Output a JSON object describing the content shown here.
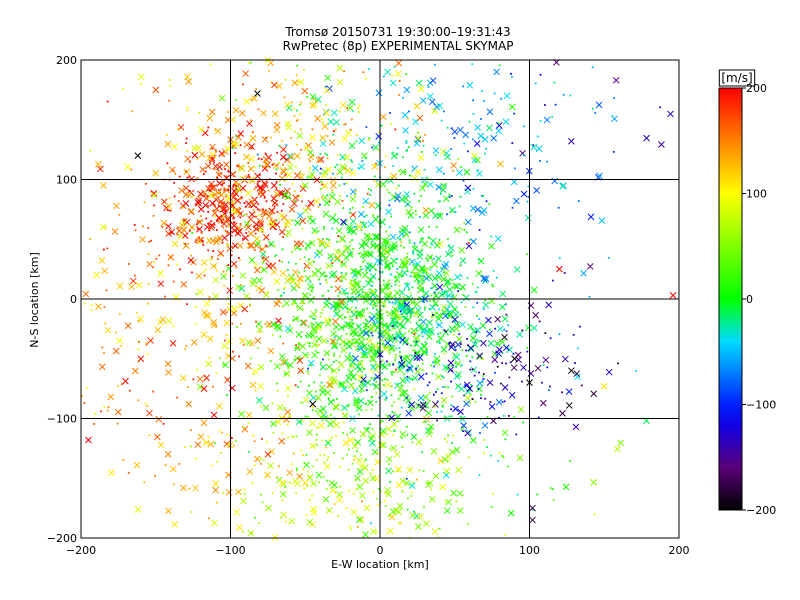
{
  "chart_data": {
    "type": "scatter",
    "title": "Tromsø 20150731 19:30:00–19:31:43",
    "subtitle": "RwPretec (8p) EXPERIMENTAL SKYMAP",
    "xlabel": "E-W location [km]",
    "ylabel": "N-S location [km]",
    "xlim": [
      -200,
      200
    ],
    "ylim": [
      -200,
      200
    ],
    "xticks": [
      -200,
      -100,
      0,
      100,
      200
    ],
    "yticks": [
      -200,
      -100,
      0,
      100,
      200
    ],
    "xtick_labels": [
      "−200",
      "−100",
      "0",
      "100",
      "200"
    ],
    "ytick_labels": [
      "−200",
      "−100",
      "0",
      "100",
      "200"
    ],
    "grid": true,
    "marker_styles": [
      "x",
      "dot"
    ],
    "colorbar": {
      "label": "[m/s]",
      "min": -200,
      "max": 200,
      "ticks": [
        200,
        100,
        0,
        -100,
        -200
      ],
      "tick_labels": [
        "200",
        "100",
        "0",
        "−100",
        "−200"
      ],
      "colormap": "rainbow (black-purple-blue-cyan-green-yellow-red)"
    },
    "clusters": [
      {
        "center": [
          -100,
          80
        ],
        "spread": [
          25,
          25
        ],
        "velocity": 185
      },
      {
        "center": [
          0,
          -10
        ],
        "spread": [
          40,
          55
        ],
        "velocity": 10
      },
      {
        "center": [
          40,
          130
        ],
        "spread": [
          60,
          50
        ],
        "velocity": -40
      },
      {
        "center": [
          -120,
          -10
        ],
        "spread": [
          50,
          70
        ],
        "velocity": 140
      },
      {
        "center": [
          60,
          -60
        ],
        "spread": [
          40,
          30
        ],
        "velocity": -110
      },
      {
        "center": [
          -60,
          130
        ],
        "spread": [
          50,
          40
        ],
        "velocity": 120
      },
      {
        "center": [
          -20,
          -150
        ],
        "spread": [
          60,
          40
        ],
        "velocity": 70
      }
    ],
    "points": [
      {
        "x": -185,
        "y": 95,
        "v": 130,
        "m": "x"
      },
      {
        "x": -162,
        "y": 120,
        "v": -200,
        "m": "x"
      },
      {
        "x": -150,
        "y": 175,
        "v": 170,
        "m": "x"
      },
      {
        "x": -128,
        "y": 182,
        "v": 140,
        "m": "x"
      },
      {
        "x": -120,
        "y": 88,
        "v": 195,
        "m": "x"
      },
      {
        "x": -112,
        "y": 80,
        "v": 200,
        "m": "x"
      },
      {
        "x": -105,
        "y": 75,
        "v": 190,
        "m": "x"
      },
      {
        "x": -98,
        "y": 85,
        "v": 185,
        "m": "x"
      },
      {
        "x": -95,
        "y": 55,
        "v": 195,
        "m": "x"
      },
      {
        "x": -88,
        "y": 60,
        "v": 175,
        "m": "x"
      },
      {
        "x": -82,
        "y": 172,
        "v": -200,
        "m": "x"
      },
      {
        "x": -80,
        "y": 65,
        "v": 160,
        "m": "x"
      },
      {
        "x": -75,
        "y": 200,
        "v": 90,
        "m": "x"
      },
      {
        "x": -70,
        "y": 155,
        "v": 130,
        "m": "x"
      },
      {
        "x": -60,
        "y": 110,
        "v": 60,
        "m": "x"
      },
      {
        "x": -50,
        "y": 95,
        "v": 40,
        "m": "x"
      },
      {
        "x": -45,
        "y": 65,
        "v": 0,
        "m": "x"
      },
      {
        "x": -45,
        "y": -88,
        "v": -200,
        "m": "x"
      },
      {
        "x": -35,
        "y": 185,
        "v": 20,
        "m": "x"
      },
      {
        "x": -20,
        "y": 160,
        "v": 30,
        "m": "x"
      },
      {
        "x": 5,
        "y": 190,
        "v": -30,
        "m": "x"
      },
      {
        "x": 18,
        "y": 175,
        "v": -60,
        "m": "x"
      },
      {
        "x": 35,
        "y": 165,
        "v": -80,
        "m": "x"
      },
      {
        "x": 50,
        "y": 140,
        "v": -90,
        "m": "x"
      },
      {
        "x": 65,
        "y": 130,
        "v": -110,
        "m": "x"
      },
      {
        "x": 78,
        "y": 190,
        "v": -70,
        "m": "x"
      },
      {
        "x": 85,
        "y": 170,
        "v": -40,
        "m": "x"
      },
      {
        "x": 118,
        "y": 198,
        "v": -160,
        "m": "x"
      },
      {
        "x": 128,
        "y": 132,
        "v": -140,
        "m": "x"
      },
      {
        "x": 158,
        "y": 183,
        "v": -150,
        "m": "x"
      },
      {
        "x": 120,
        "y": 25,
        "v": 200,
        "m": "x"
      },
      {
        "x": 100,
        "y": -70,
        "v": -200,
        "m": "x"
      },
      {
        "x": 128,
        "y": -60,
        "v": -200,
        "m": "x"
      },
      {
        "x": 150,
        "y": -73,
        "v": 110,
        "m": "x"
      },
      {
        "x": 102,
        "y": -175,
        "v": -180,
        "m": "x"
      },
      {
        "x": 102,
        "y": -185,
        "v": -180,
        "m": "x"
      },
      {
        "x": -195,
        "y": -118,
        "v": 200,
        "m": "x"
      },
      {
        "x": -160,
        "y": -50,
        "v": 190,
        "m": "x"
      },
      {
        "x": -128,
        "y": -88,
        "v": 150,
        "m": "x"
      },
      {
        "x": -110,
        "y": -160,
        "v": 150,
        "m": "x"
      },
      {
        "x": -75,
        "y": -130,
        "v": 180,
        "m": "x"
      },
      {
        "x": -15,
        "y": -150,
        "v": 30,
        "m": "x"
      },
      {
        "x": 5,
        "y": -160,
        "v": 60,
        "m": "x"
      },
      {
        "x": 45,
        "y": -100,
        "v": -20,
        "m": "x"
      },
      {
        "x": 60,
        "y": -75,
        "v": -120,
        "m": "x"
      },
      {
        "x": 75,
        "y": -90,
        "v": -110,
        "m": "x"
      },
      {
        "x": 90,
        "y": -50,
        "v": -200,
        "m": "x"
      },
      {
        "x": -165,
        "y": 15,
        "v": 180,
        "m": "x"
      },
      {
        "x": -140,
        "y": 35,
        "v": 160,
        "m": "x"
      },
      {
        "x": 30,
        "y": 0,
        "v": -80,
        "m": "x"
      },
      {
        "x": 40,
        "y": 10,
        "v": -120,
        "m": "x"
      },
      {
        "x": 20,
        "y": -10,
        "v": -60,
        "m": "x"
      },
      {
        "x": -10,
        "y": 20,
        "v": 20,
        "m": "x"
      },
      {
        "x": 196,
        "y": 3,
        "v": 200,
        "m": "x"
      }
    ]
  }
}
